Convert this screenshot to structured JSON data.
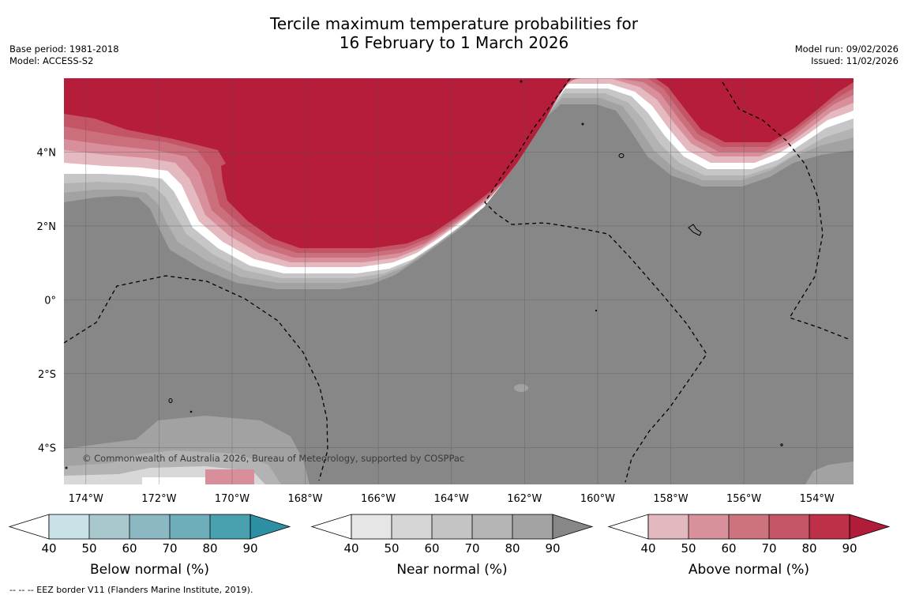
{
  "title": {
    "line1": "Tercile maximum temperature probabilities for",
    "line2": "16 February to 1 March 2026"
  },
  "meta": {
    "base_period": "Base period: 1981-2018",
    "model": "Model: ACCESS-S2",
    "model_run": "Model run: 09/02/2026",
    "issued": "Issued: 11/02/2026"
  },
  "map": {
    "lon_ticks": [
      "174°W",
      "172°W",
      "170°W",
      "168°W",
      "166°W",
      "164°W",
      "162°W",
      "160°W",
      "158°W",
      "156°W",
      "154°W"
    ],
    "lat_ticks": [
      "4°N",
      "2°N",
      "0°",
      "2°S",
      "4°S"
    ],
    "lon_range": [
      -174.6,
      -153.0
    ],
    "lat_range": [
      -5.0,
      6.0
    ],
    "copyright": "© Commonwealth of Australia 2026, Bureau of Meteorology, supported by COSPPac",
    "colors": {
      "background": "#878787",
      "near_levels": [
        "#d8d8d8",
        "#c6c6c6",
        "#b3b3b3",
        "#a2a2a2"
      ],
      "above_levels": [
        "#e4b9bf",
        "#d98f9b",
        "#cc6f7d",
        "#c45566",
        "#b51d3a"
      ]
    }
  },
  "colorbars": [
    {
      "label": "Below normal (%)",
      "ticks": [
        "40",
        "50",
        "60",
        "70",
        "80",
        "90"
      ],
      "colors": [
        "#ffffff",
        "#c9e2e8",
        "#a9c8cd",
        "#8cb8c4",
        "#6eaebb",
        "#49a1b0",
        "#2d8fa3"
      ]
    },
    {
      "label": "Near normal (%)",
      "ticks": [
        "40",
        "50",
        "60",
        "70",
        "80",
        "90"
      ],
      "colors": [
        "#ffffff",
        "#e6e6e6",
        "#d6d6d6",
        "#c4c4c4",
        "#b4b4b4",
        "#a3a3a3",
        "#878787"
      ]
    },
    {
      "label": "Above normal (%)",
      "ticks": [
        "40",
        "50",
        "60",
        "70",
        "80",
        "90"
      ],
      "colors": [
        "#ffffff",
        "#e3b8be",
        "#d8909b",
        "#cc737e",
        "#c45566",
        "#bd3048",
        "#b01c3a"
      ]
    }
  ],
  "footer": "--  --  -- EEZ border V11 (Flanders Marine Institute, 2019)."
}
